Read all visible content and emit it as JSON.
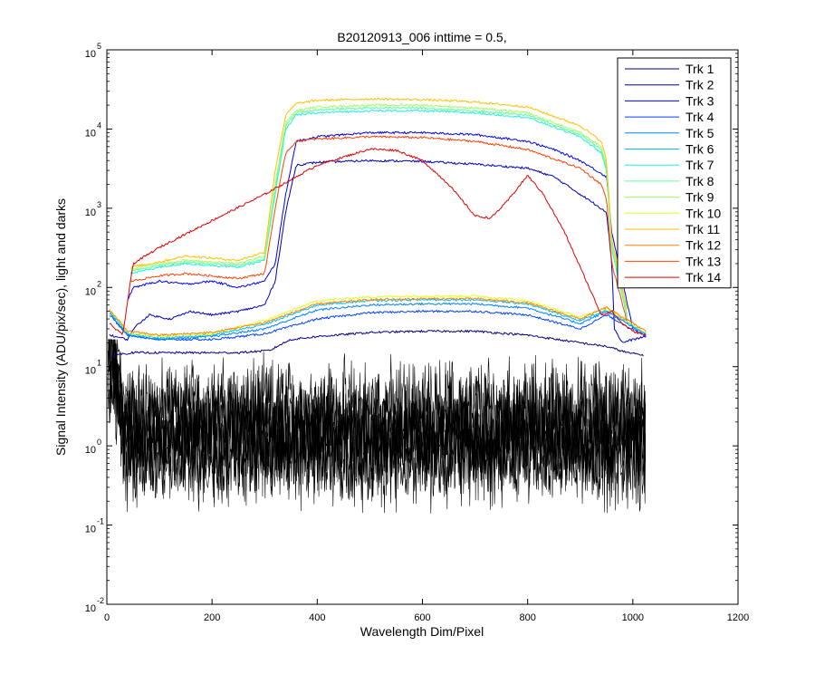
{
  "chart_data": {
    "type": "line",
    "title": "B20120913_006 inttime = 0.5,",
    "xlabel": "Wavelength Dim/Pixel",
    "ylabel": "Signal Intensity (ADU/pix/sec), light and darks",
    "xlim": [
      0,
      1200
    ],
    "ylim": [
      0.01,
      100000
    ],
    "yscale": "log",
    "xticks": [
      "0",
      "200",
      "400",
      "600",
      "800",
      "1000",
      "1200"
    ],
    "yticks": [
      {
        "base": "10",
        "exp": "-2"
      },
      {
        "base": "10",
        "exp": "-1"
      },
      {
        "base": "10",
        "exp": "0"
      },
      {
        "base": "10",
        "exp": "1"
      },
      {
        "base": "10",
        "exp": "2"
      },
      {
        "base": "10",
        "exp": "3"
      },
      {
        "base": "10",
        "exp": "4"
      },
      {
        "base": "10",
        "exp": "5"
      }
    ],
    "grid": false,
    "legend": "top-right",
    "series": [
      {
        "name": "Trk 1",
        "color": "#000080",
        "x": [
          10,
          50,
          150,
          250,
          310,
          330,
          350,
          400,
          500,
          600,
          700,
          800,
          900,
          950,
          990,
          1020
        ],
        "y": [
          14,
          15,
          15,
          15,
          16,
          19,
          22,
          24,
          27,
          28,
          28,
          25,
          20,
          18,
          15,
          14
        ]
      },
      {
        "name": "Trk 2",
        "color": "#0000b8",
        "x": [
          5,
          40,
          50,
          80,
          120,
          160,
          200,
          250,
          300,
          320,
          340,
          360,
          400,
          500,
          600,
          700,
          800,
          850,
          900,
          950,
          960,
          965,
          980,
          1000,
          1025
        ],
        "y": [
          25,
          22,
          30,
          45,
          40,
          50,
          45,
          50,
          60,
          120,
          900,
          3500,
          3800,
          4000,
          3900,
          3600,
          3200,
          2500,
          1500,
          900,
          200,
          30,
          20,
          22,
          24
        ]
      },
      {
        "name": "Trk 3",
        "color": "#0000f0",
        "x": [
          40,
          50,
          100,
          150,
          200,
          250,
          300,
          320,
          340,
          360,
          400,
          500,
          600,
          700,
          800,
          850,
          900,
          950,
          960,
          1000
        ],
        "y": [
          70,
          100,
          120,
          110,
          120,
          100,
          120,
          200,
          1500,
          7000,
          8000,
          9000,
          9000,
          8500,
          7000,
          5500,
          4000,
          2500,
          500,
          30
        ]
      },
      {
        "name": "Trk 4",
        "color": "#0040ff",
        "x": [
          5,
          40,
          100,
          200,
          300,
          400,
          500,
          600,
          700,
          800,
          900,
          950,
          1025
        ],
        "y": [
          45,
          25,
          22,
          22,
          26,
          40,
          48,
          50,
          50,
          45,
          30,
          45,
          24
        ]
      },
      {
        "name": "Trk 5",
        "color": "#0080ff",
        "x": [
          5,
          40,
          100,
          200,
          300,
          400,
          500,
          600,
          700,
          800,
          900,
          950,
          1025
        ],
        "y": [
          48,
          25,
          22,
          24,
          30,
          52,
          60,
          62,
          62,
          55,
          35,
          50,
          25
        ]
      },
      {
        "name": "Trk 6",
        "color": "#00c0ff",
        "x": [
          5,
          40,
          100,
          200,
          300,
          400,
          500,
          600,
          700,
          800,
          900,
          950,
          1025
        ],
        "y": [
          50,
          26,
          23,
          25,
          34,
          60,
          68,
          70,
          70,
          62,
          38,
          52,
          26
        ]
      },
      {
        "name": "Trk 7",
        "color": "#20f0e0",
        "x": [
          45,
          100,
          150,
          250,
          300,
          320,
          340,
          360,
          400,
          500,
          600,
          700,
          800,
          900,
          940,
          950,
          960,
          990
        ],
        "y": [
          150,
          180,
          200,
          180,
          220,
          1500,
          10000,
          15000,
          16000,
          17000,
          17000,
          16000,
          14000,
          8000,
          5000,
          3000,
          300,
          40
        ]
      },
      {
        "name": "Trk 8",
        "color": "#60ffa0",
        "x": [
          45,
          100,
          150,
          250,
          300,
          320,
          340,
          360,
          400,
          500,
          600,
          700,
          800,
          900,
          940,
          950,
          960,
          990
        ],
        "y": [
          160,
          190,
          210,
          190,
          230,
          1800,
          11000,
          16000,
          17500,
          18500,
          18500,
          17000,
          15000,
          8500,
          5500,
          3200,
          320,
          42
        ]
      },
      {
        "name": "Trk 9",
        "color": "#a0ff60",
        "x": [
          45,
          100,
          150,
          250,
          300,
          320,
          340,
          360,
          400,
          500,
          600,
          700,
          800,
          900,
          940,
          950,
          960,
          990
        ],
        "y": [
          170,
          200,
          220,
          200,
          250,
          2000,
          12000,
          17000,
          19000,
          20000,
          20000,
          18500,
          16000,
          9000,
          6000,
          3500,
          350,
          45
        ]
      },
      {
        "name": "Trk 10",
        "color": "#e0ff20",
        "x": [
          5,
          40,
          100,
          200,
          300,
          400,
          500,
          600,
          700,
          800,
          900,
          950,
          1025
        ],
        "y": [
          52,
          27,
          24,
          26,
          38,
          68,
          76,
          78,
          78,
          68,
          42,
          55,
          27
        ]
      },
      {
        "name": "Trk 11",
        "color": "#ffc000",
        "x": [
          45,
          100,
          150,
          250,
          300,
          320,
          340,
          360,
          400,
          500,
          600,
          700,
          800,
          900,
          940,
          950,
          960,
          990
        ],
        "y": [
          180,
          210,
          250,
          220,
          280,
          3000,
          15000,
          21000,
          23000,
          24000,
          23500,
          22000,
          19000,
          11000,
          7000,
          4000,
          400,
          50
        ]
      },
      {
        "name": "Trk 12",
        "color": "#ff8000",
        "x": [
          5,
          40,
          100,
          200,
          300,
          400,
          500,
          600,
          700,
          800,
          900,
          950,
          1025
        ],
        "y": [
          52,
          28,
          25,
          27,
          36,
          62,
          70,
          72,
          72,
          64,
          40,
          56,
          28
        ]
      },
      {
        "name": "Trk 13",
        "color": "#ff4000",
        "x": [
          45,
          100,
          150,
          250,
          300,
          320,
          340,
          360,
          400,
          500,
          600,
          700,
          800,
          900,
          940,
          950,
          960,
          990
        ],
        "y": [
          120,
          140,
          150,
          130,
          150,
          1000,
          5000,
          7000,
          7500,
          8000,
          7800,
          7000,
          5500,
          3200,
          2000,
          1300,
          200,
          35
        ]
      },
      {
        "name": "Trk 14",
        "color": "#e00000",
        "x": [
          5,
          30,
          50,
          100,
          200,
          300,
          400,
          500,
          550,
          600,
          650,
          700,
          730,
          760,
          800,
          830,
          870,
          900,
          940,
          960,
          980,
          1000,
          1025
        ],
        "y": [
          35,
          25,
          200,
          320,
          700,
          1500,
          3500,
          5600,
          5400,
          4000,
          2000,
          800,
          750,
          1200,
          2600,
          1500,
          500,
          180,
          45,
          50,
          35,
          28,
          25
        ]
      }
    ]
  }
}
